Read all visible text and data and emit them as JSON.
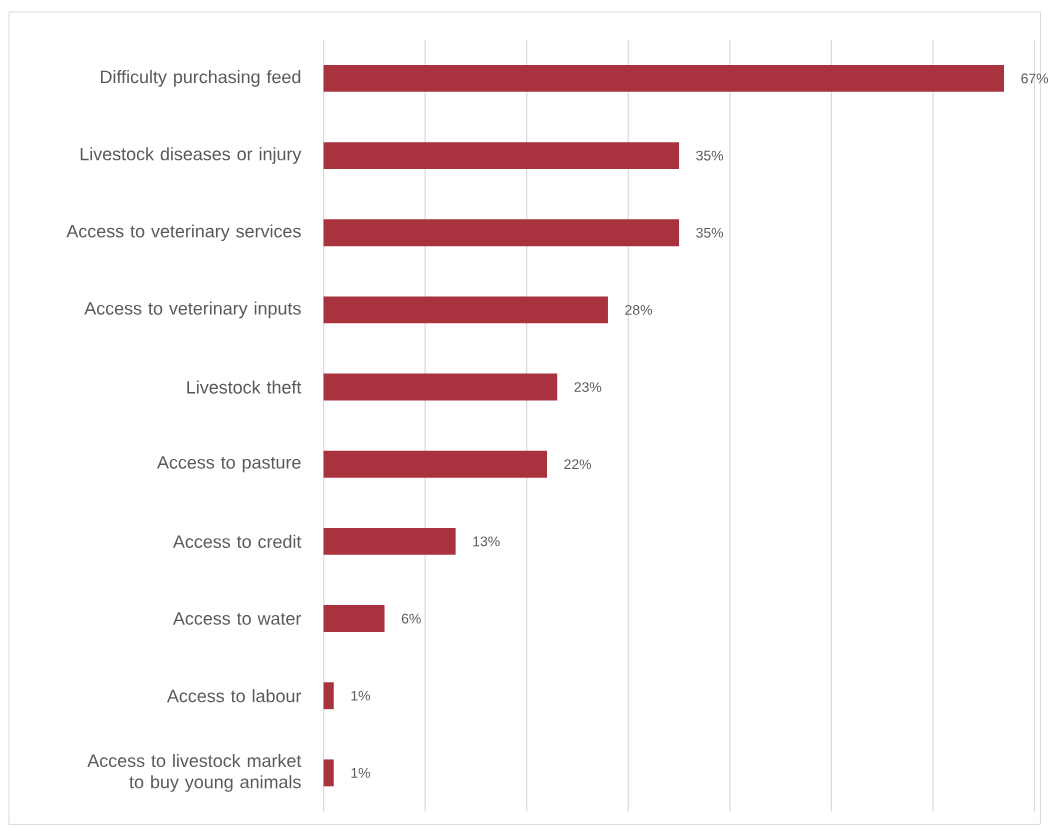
{
  "chart_data": {
    "type": "bar",
    "orientation": "horizontal",
    "categories": [
      "Difficulty purchasing feed",
      "Livestock diseases or injury",
      "Access to veterinary services",
      "Access to veterinary inputs",
      "Livestock theft",
      "Access to pasture",
      "Access to credit",
      "Access to water",
      "Access to labour",
      "Access to livestock market to buy young animals"
    ],
    "values": [
      67,
      35,
      35,
      28,
      23,
      22,
      13,
      6,
      1,
      1
    ],
    "value_labels": [
      "67%",
      "35%",
      "35%",
      "28%",
      "23%",
      "22%",
      "13%",
      "6%",
      "1%",
      "1%"
    ],
    "color": "#a8323e",
    "xlim": [
      0,
      70
    ],
    "xticks": [
      {
        "value": 0,
        "label": null
      },
      {
        "value": 10,
        "label": null
      },
      {
        "value": 20,
        "label": null
      },
      {
        "value": 30,
        "label": null
      },
      {
        "value": 40,
        "label": null
      },
      {
        "value": 50,
        "label": null
      },
      {
        "value": 60,
        "label": null
      },
      {
        "value": 70,
        "label": null
      }
    ],
    "grid": "x",
    "tick_labels": "y"
  }
}
